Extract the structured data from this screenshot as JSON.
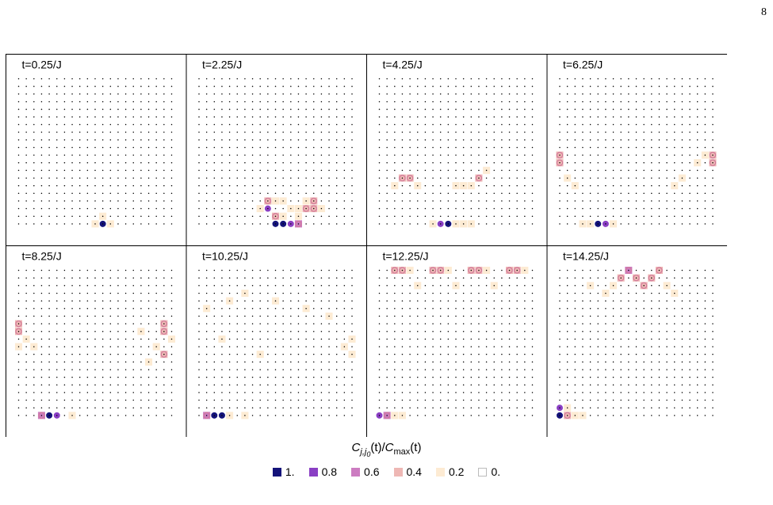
{
  "page_number": "8",
  "legend": {
    "title_main": "C",
    "title_sub1": "j,j",
    "title_sub2": "0",
    "title_mid": "(t)/",
    "title_denom": "C",
    "title_denom_sub": "max",
    "title_end": "(t)",
    "entries": [
      {
        "label": "1.",
        "color": "#14137a"
      },
      {
        "label": "0.8",
        "color": "#8a3fc4"
      },
      {
        "label": "0.6",
        "color": "#cc7cc1"
      },
      {
        "label": "0.4",
        "color": "#eeb7b4"
      },
      {
        "label": "0.2",
        "color": "#fdebd3"
      },
      {
        "label": "0.",
        "color": "#ffffff"
      }
    ]
  },
  "chart_data": {
    "type": "heatmap",
    "lattice": {
      "cols": 21,
      "rows": 20
    },
    "panels": [
      {
        "label": "t=0.25/J",
        "cells": [
          [
            11,
            19,
            1.0
          ],
          [
            10,
            19,
            0.2
          ],
          [
            12,
            19,
            0.2
          ],
          [
            11,
            18,
            0.2
          ]
        ]
      },
      {
        "label": "t=2.25/J",
        "cells": [
          [
            10,
            19,
            1.0
          ],
          [
            11,
            19,
            1.0
          ],
          [
            12,
            19,
            0.8
          ],
          [
            13,
            19,
            0.6
          ],
          [
            9,
            17,
            0.8
          ],
          [
            9,
            16,
            0.4
          ],
          [
            10,
            18,
            0.4
          ],
          [
            14,
            17,
            0.4
          ],
          [
            15,
            17,
            0.4
          ],
          [
            15,
            16,
            0.4
          ],
          [
            12,
            17,
            0.2
          ],
          [
            13,
            17,
            0.2
          ],
          [
            11,
            18,
            0.2
          ],
          [
            8,
            17,
            0.2
          ],
          [
            13,
            18,
            0.2
          ],
          [
            14,
            16,
            0.2
          ],
          [
            16,
            17,
            0.2
          ],
          [
            10,
            16,
            0.2
          ],
          [
            11,
            16,
            0.2
          ]
        ]
      },
      {
        "label": "t=4.25/J",
        "cells": [
          [
            8,
            19,
            0.8
          ],
          [
            9,
            19,
            1.0
          ],
          [
            7,
            19,
            0.2
          ],
          [
            10,
            19,
            0.2
          ],
          [
            11,
            19,
            0.2
          ],
          [
            12,
            19,
            0.2
          ],
          [
            3,
            13,
            0.4
          ],
          [
            4,
            13,
            0.4
          ],
          [
            2,
            14,
            0.2
          ],
          [
            13,
            13,
            0.4
          ],
          [
            14,
            12,
            0.2
          ],
          [
            12,
            14,
            0.2
          ],
          [
            5,
            14,
            0.2
          ],
          [
            10,
            14,
            0.2
          ],
          [
            11,
            14,
            0.2
          ]
        ]
      },
      {
        "label": "t=6.25/J",
        "cells": [
          [
            5,
            19,
            1.0
          ],
          [
            6,
            19,
            0.8
          ],
          [
            4,
            19,
            0.2
          ],
          [
            7,
            19,
            0.2
          ],
          [
            3,
            19,
            0.2
          ],
          [
            0,
            10,
            0.4
          ],
          [
            0,
            11,
            0.4
          ],
          [
            20,
            10,
            0.4
          ],
          [
            20,
            11,
            0.4
          ],
          [
            19,
            10,
            0.2
          ],
          [
            18,
            11,
            0.2
          ],
          [
            16,
            13,
            0.2
          ],
          [
            15,
            14,
            0.2
          ],
          [
            1,
            13,
            0.2
          ],
          [
            2,
            14,
            0.2
          ]
        ]
      },
      {
        "label": "t=8.25/J",
        "cells": [
          [
            3,
            19,
            0.6
          ],
          [
            4,
            19,
            1.0
          ],
          [
            5,
            19,
            0.8
          ],
          [
            7,
            19,
            0.2
          ],
          [
            0,
            7,
            0.4
          ],
          [
            0,
            8,
            0.4
          ],
          [
            19,
            7,
            0.4
          ],
          [
            19,
            8,
            0.4
          ],
          [
            19,
            11,
            0.4
          ],
          [
            18,
            10,
            0.2
          ],
          [
            1,
            9,
            0.2
          ],
          [
            2,
            10,
            0.2
          ],
          [
            0,
            10,
            0.2
          ],
          [
            20,
            9,
            0.2
          ],
          [
            17,
            12,
            0.2
          ],
          [
            16,
            8,
            0.2
          ]
        ]
      },
      {
        "label": "t=10.25/J",
        "cells": [
          [
            1,
            19,
            0.6
          ],
          [
            2,
            19,
            1.0
          ],
          [
            3,
            19,
            1.0
          ],
          [
            4,
            19,
            0.2
          ],
          [
            6,
            19,
            0.2
          ],
          [
            20,
            9,
            0.2
          ],
          [
            19,
            10,
            0.2
          ],
          [
            20,
            11,
            0.2
          ],
          [
            1,
            5,
            0.2
          ],
          [
            4,
            4,
            0.2
          ],
          [
            6,
            3,
            0.2
          ],
          [
            10,
            4,
            0.2
          ],
          [
            14,
            5,
            0.2
          ],
          [
            17,
            6,
            0.2
          ],
          [
            3,
            9,
            0.2
          ],
          [
            8,
            11,
            0.2
          ]
        ]
      },
      {
        "label": "t=12.25/J",
        "cells": [
          [
            0,
            19,
            0.8
          ],
          [
            1,
            19,
            0.6
          ],
          [
            2,
            19,
            0.2
          ],
          [
            3,
            19,
            0.2
          ],
          [
            2,
            0,
            0.4
          ],
          [
            3,
            0,
            0.4
          ],
          [
            7,
            0,
            0.4
          ],
          [
            8,
            0,
            0.4
          ],
          [
            12,
            0,
            0.4
          ],
          [
            13,
            0,
            0.4
          ],
          [
            17,
            0,
            0.4
          ],
          [
            18,
            0,
            0.4
          ],
          [
            4,
            0,
            0.2
          ],
          [
            9,
            0,
            0.2
          ],
          [
            14,
            0,
            0.2
          ],
          [
            19,
            0,
            0.2
          ],
          [
            5,
            2,
            0.2
          ],
          [
            10,
            2,
            0.2
          ],
          [
            15,
            2,
            0.2
          ]
        ]
      },
      {
        "label": "t=14.25/J",
        "cells": [
          [
            0,
            18,
            0.8
          ],
          [
            0,
            19,
            1.0
          ],
          [
            1,
            19,
            0.4
          ],
          [
            2,
            19,
            0.2
          ],
          [
            3,
            19,
            0.2
          ],
          [
            1,
            18,
            0.2
          ],
          [
            8,
            1,
            0.4
          ],
          [
            9,
            0,
            0.6
          ],
          [
            10,
            1,
            0.4
          ],
          [
            12,
            1,
            0.4
          ],
          [
            11,
            2,
            0.4
          ],
          [
            13,
            0,
            0.4
          ],
          [
            7,
            2,
            0.2
          ],
          [
            6,
            3,
            0.2
          ],
          [
            14,
            2,
            0.2
          ],
          [
            15,
            3,
            0.2
          ],
          [
            4,
            2,
            0.2
          ]
        ]
      }
    ]
  }
}
